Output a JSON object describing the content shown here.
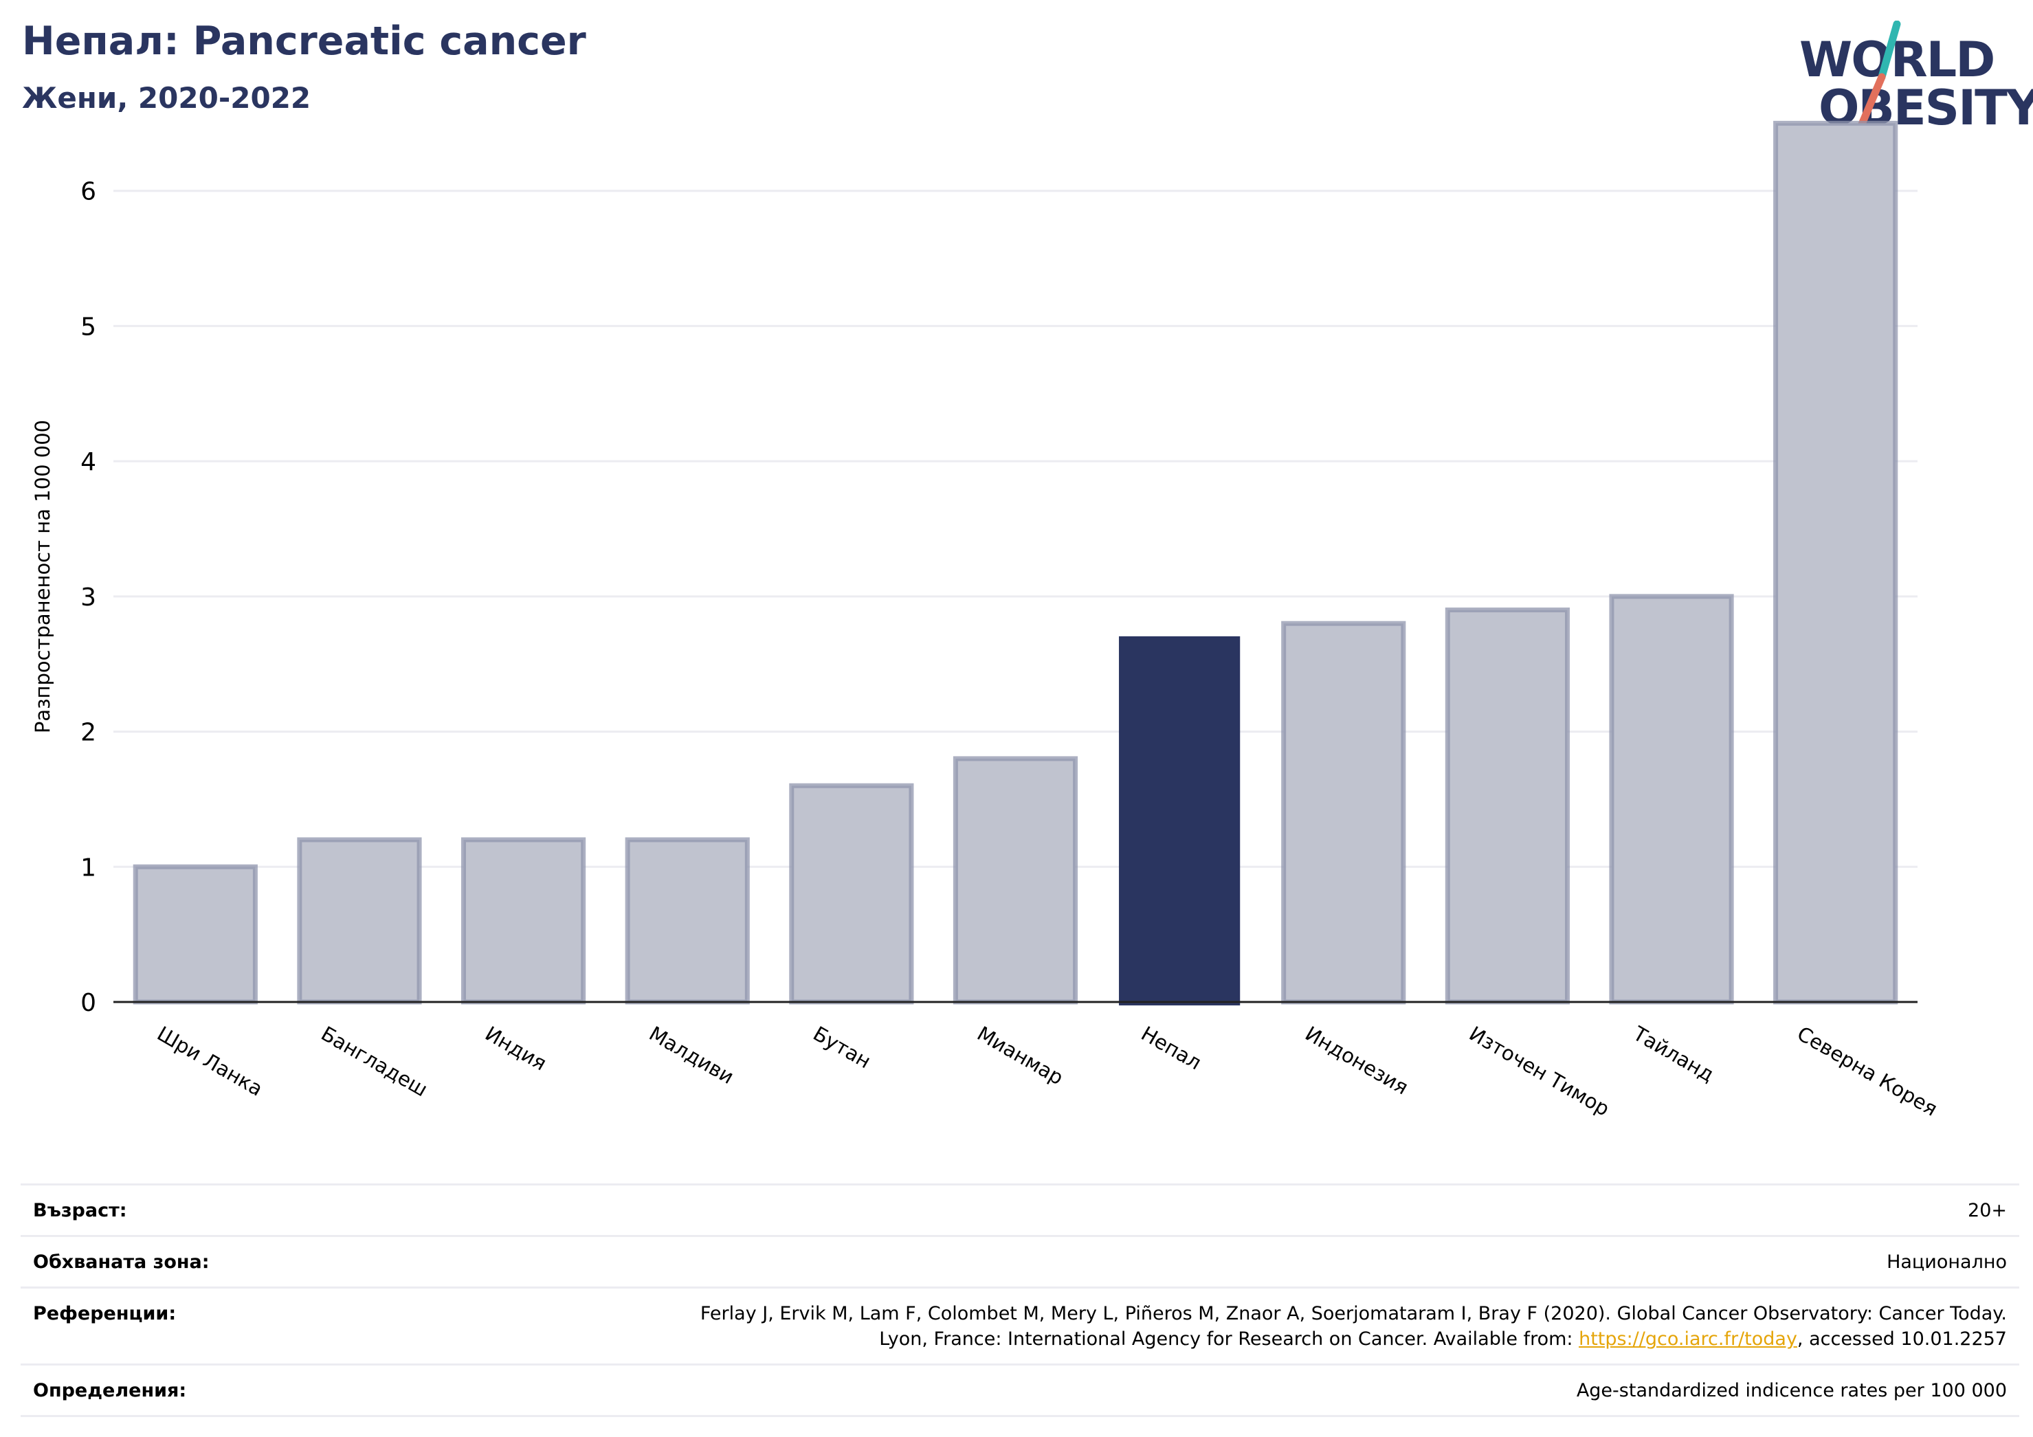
{
  "header": {
    "title": "Непал: Pancreatic cancer",
    "subtitle": "Жени, 2020-2022"
  },
  "logo": {
    "line1": "WORLD",
    "line2": "OBESITY",
    "icon": "slash-mark-icon"
  },
  "colors": {
    "highlight": "#2a3560",
    "bar_fill": "#c0c3cf",
    "bar_stroke": "#9095ad",
    "grid": "#ececf1",
    "logo_teal": "#30b6b0",
    "logo_coral": "#e2705c",
    "link": "#e5a50a"
  },
  "chart_data": {
    "type": "bar",
    "ylabel": "Разпространеност  на 100 000",
    "categories": [
      "Шри Ланка",
      "Бангладеш",
      "Индия",
      "Малдиви",
      "Бутан",
      "Мианмар",
      "Непал",
      "Индонезия",
      "Източен Тимор",
      "Тайланд",
      "Северна Корея"
    ],
    "values": [
      1.0,
      1.2,
      1.2,
      1.2,
      1.6,
      1.8,
      2.7,
      2.8,
      2.9,
      3.0,
      6.5
    ],
    "highlight": "Непал",
    "yticks": [
      0,
      1,
      2,
      3,
      4,
      5,
      6
    ],
    "ylim": [
      0,
      6.7
    ],
    "grid": true
  },
  "footer": {
    "age_label": "Възраст:",
    "age_value": "20+",
    "coverage_label": "Обхваната зона:",
    "coverage_value": "Национално",
    "refs_label": "Референции:",
    "refs_line1": "Ferlay J, Ervik M, Lam F, Colombet M, Mery L, Piñeros M, Znaor A, Soerjomataram I, Bray F (2020). Global Cancer Observatory: Cancer Today.",
    "refs_line2_pre": "Lyon, France: International Agency for Research on Cancer. Available from: ",
    "refs_link": "https://gco.iarc.fr/today",
    "refs_line2_post": ", accessed 10.01.2257",
    "defs_label": "Определения:",
    "defs_value": "Age-standardized indicence rates per 100 000"
  }
}
